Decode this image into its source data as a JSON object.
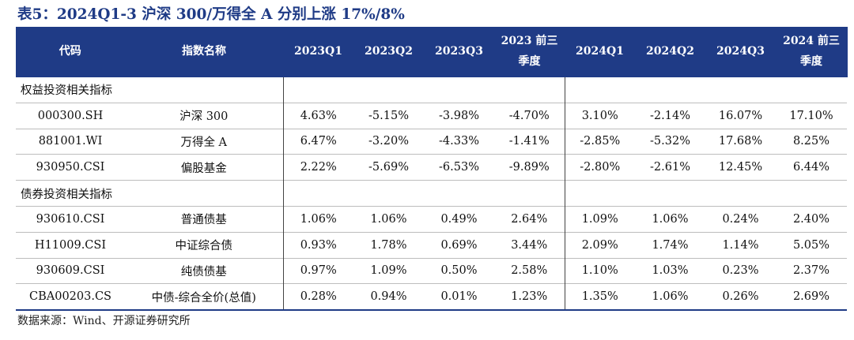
{
  "title": "表5：2024Q1-3 沪深 300/万得全 A 分别上涨 17%/8%",
  "headers": {
    "code": "代码",
    "name": "指数名称",
    "cols": [
      {
        "l1": "2023Q1",
        "l2": ""
      },
      {
        "l1": "2023Q2",
        "l2": ""
      },
      {
        "l1": "2023Q3",
        "l2": ""
      },
      {
        "l1": "2023 前三",
        "l2": "季度"
      },
      {
        "l1": "2024Q1",
        "l2": ""
      },
      {
        "l1": "2024Q2",
        "l2": ""
      },
      {
        "l1": "2024Q3",
        "l2": ""
      },
      {
        "l1": "2024 前三",
        "l2": "季度"
      }
    ]
  },
  "sections": [
    {
      "label": "权益投资相关指标",
      "rows": [
        {
          "code": "000300.SH",
          "name": "沪深 300",
          "values": [
            "4.63%",
            "-5.15%",
            "-3.98%",
            "-4.70%",
            "3.10%",
            "-2.14%",
            "16.07%",
            "17.10%"
          ]
        },
        {
          "code": "881001.WI",
          "name": "万得全 A",
          "values": [
            "6.47%",
            "-3.20%",
            "-4.33%",
            "-1.41%",
            "-2.85%",
            "-5.32%",
            "17.68%",
            "8.25%"
          ]
        },
        {
          "code": "930950.CSI",
          "name": "偏股基金",
          "values": [
            "2.22%",
            "-5.69%",
            "-6.53%",
            "-9.89%",
            "-2.80%",
            "-2.61%",
            "12.45%",
            "6.44%"
          ]
        }
      ]
    },
    {
      "label": "债券投资相关指标",
      "rows": [
        {
          "code": "930610.CSI",
          "name": "普通债基",
          "values": [
            "1.06%",
            "1.06%",
            "0.49%",
            "2.64%",
            "1.09%",
            "1.06%",
            "0.24%",
            "2.40%"
          ]
        },
        {
          "code": "H11009.CSI",
          "name": "中证综合债",
          "values": [
            "0.93%",
            "1.78%",
            "0.69%",
            "3.44%",
            "2.09%",
            "1.74%",
            "1.14%",
            "5.05%"
          ]
        },
        {
          "code": "930609.CSI",
          "name": "纯债债基",
          "values": [
            "0.97%",
            "1.09%",
            "0.50%",
            "2.58%",
            "1.10%",
            "1.03%",
            "0.23%",
            "2.37%"
          ]
        },
        {
          "code": "CBA00203.CS",
          "name": "中债-综合全价(总值)",
          "values": [
            "0.28%",
            "0.94%",
            "0.01%",
            "1.23%",
            "1.35%",
            "1.06%",
            "0.26%",
            "2.69%"
          ]
        }
      ]
    }
  ],
  "footer": "数据来源：Wind、开源证券研究所"
}
